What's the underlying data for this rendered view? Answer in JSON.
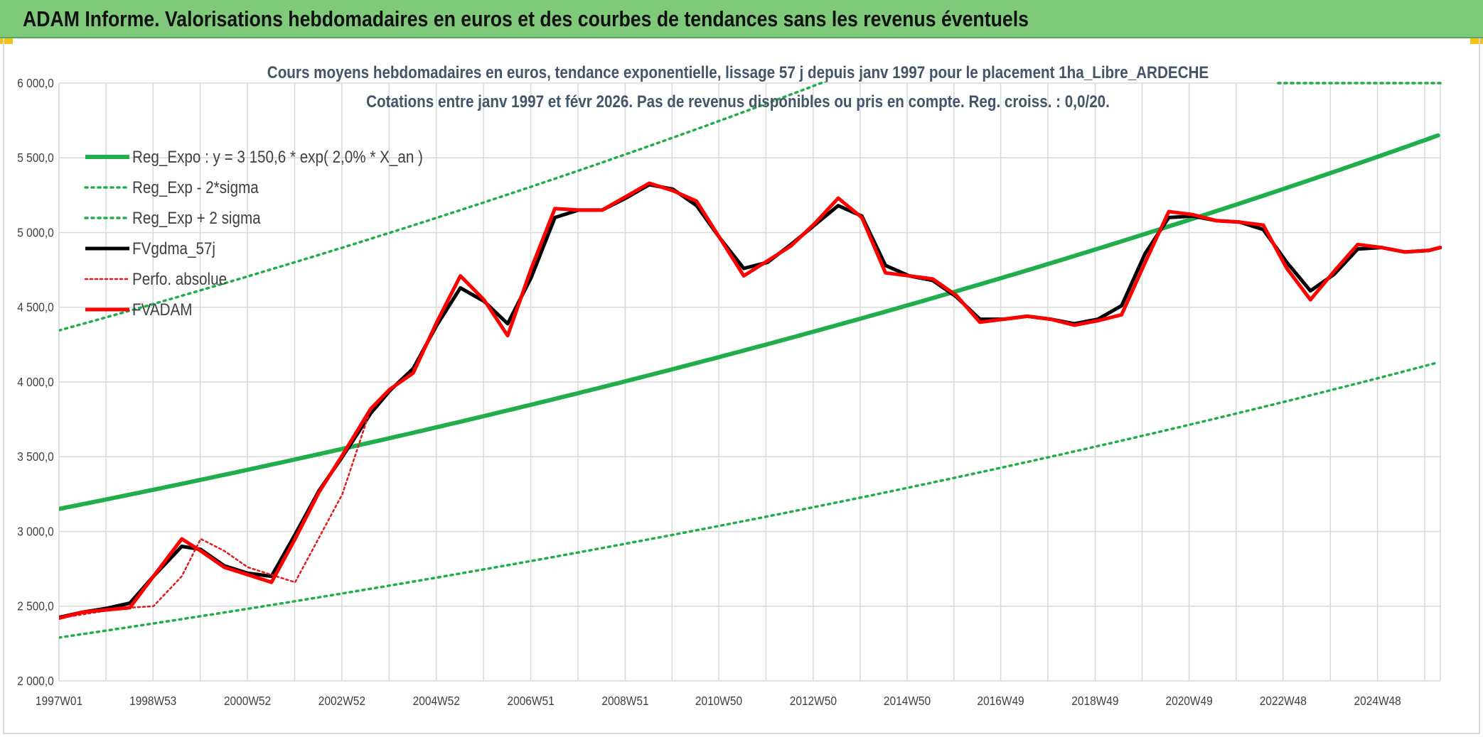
{
  "header": {
    "title": "ADAM Informe. Valorisations hebdomadaires en euros et des courbes de tendances sans les revenus éventuels"
  },
  "colors": {
    "header_bg": "#7fc97a",
    "reg_expo": "#1fae4b",
    "sigma_lines": "#1fae4b",
    "fvgdma": "#000000",
    "perfo": "#e31a1c",
    "fvadam": "#ff0000",
    "grid": "#d9d9d9"
  },
  "chart_data": {
    "type": "line",
    "title": "Cours moyens hebdomadaires en euros, tendance exponentielle, lissage 57 j depuis janv 1997 pour le placement 1ha_Libre_ARDECHE",
    "subtitle": "Cotations entre janv 1997 et févr 2026. Pas de revenus disponibles ou pris en compte. Reg. croiss. : 0,0/20.",
    "xlabel": "",
    "ylabel": "",
    "x_range": [
      1997.0,
      2026.25
    ],
    "ylim": [
      2000,
      6000
    ],
    "yticks": [
      2000,
      2500,
      3000,
      3500,
      4000,
      4500,
      5000,
      5500,
      6000
    ],
    "ytick_labels": [
      "2 000,0",
      "2 500,0",
      "3 000,0",
      "3 500,0",
      "4 000,0",
      "4 500,0",
      "5 000,0",
      "5 500,0",
      "6 000,0"
    ],
    "xticks": [
      1997.0,
      1998.99,
      2000.99,
      2002.99,
      2004.99,
      2006.99,
      2008.99,
      2010.97,
      2012.97,
      2014.96,
      2016.94,
      2018.94,
      2020.93,
      2022.92,
      2024.92
    ],
    "xtick_labels": [
      "1997W01",
      "1998W53",
      "2000W52",
      "2002W52",
      "2004W52",
      "2006W51",
      "2008W51",
      "2010W50",
      "2012W50",
      "2014W50",
      "2016W49",
      "2018W49",
      "2020W49",
      "2022W48",
      "2024W48"
    ],
    "grid": true,
    "legend_position": "top-left",
    "legend": [
      {
        "label": "Reg_Expo : y = 3 150,6 * exp( 2,0% *  X_an )",
        "style": "solid-thick",
        "color": "#1fae4b"
      },
      {
        "label": "Reg_Exp - 2*sigma",
        "style": "dotted",
        "color": "#1fae4b"
      },
      {
        "label": "Reg_Exp + 2 sigma",
        "style": "dotted",
        "color": "#1fae4b"
      },
      {
        "label": "FVgdma_57j",
        "style": "solid",
        "color": "#000000"
      },
      {
        "label": "Perfo. absolue",
        "style": "dotted",
        "color": "#e31a1c"
      },
      {
        "label": "FVADAM",
        "style": "solid-thick",
        "color": "#ff0000"
      }
    ],
    "series": [
      {
        "name": "Reg_Expo : y = 3 150,6 * exp( 2,0% *  X_an )",
        "kind": "exp",
        "a": 3150.6,
        "rate": 0.02,
        "x_start": 1997.0,
        "x_end": 2026.25
      },
      {
        "name": "Reg_Exp - 2*sigma",
        "kind": "exp",
        "a": 2290,
        "rate": 0.0202,
        "x_start": 1997.0,
        "x_end": 2026.25
      },
      {
        "name": "Reg_Exp + 2 sigma",
        "kind": "exp",
        "a": 4345,
        "rate": 0.02,
        "x_start": 1997.0,
        "x_end": 2026.25
      },
      {
        "name": "FVgdma_57j",
        "kind": "points",
        "x": [
          1997.0,
          1997.5,
          1998.0,
          1998.5,
          1999.0,
          1999.6,
          2000.0,
          2000.5,
          2001.0,
          2001.5,
          2002.0,
          2002.5,
          2003.0,
          2003.6,
          2004.0,
          2004.5,
          2005.0,
          2005.5,
          2006.0,
          2006.5,
          2007.0,
          2007.5,
          2008.0,
          2008.5,
          2009.0,
          2009.5,
          2010.0,
          2010.5,
          2011.0,
          2011.5,
          2012.0,
          2012.5,
          2013.0,
          2013.5,
          2014.0,
          2014.5,
          2015.0,
          2015.5,
          2016.0,
          2016.5,
          2017.0,
          2017.5,
          2018.0,
          2018.5,
          2019.0,
          2019.5,
          2020.0,
          2020.5,
          2021.0,
          2021.5,
          2022.0,
          2022.5,
          2023.0,
          2023.5,
          2024.0,
          2024.5,
          2025.0,
          2025.5,
          2026.0,
          2026.25
        ],
        "y": [
          2425,
          2460,
          2485,
          2520,
          2700,
          2900,
          2880,
          2770,
          2720,
          2700,
          2980,
          3270,
          3500,
          3790,
          3940,
          4090,
          4380,
          4630,
          4540,
          4390,
          4700,
          5100,
          5150,
          5150,
          5230,
          5320,
          5290,
          5180,
          4960,
          4760,
          4800,
          4920,
          5050,
          5180,
          5110,
          4780,
          4710,
          4680,
          4570,
          4420,
          4420,
          4440,
          4420,
          4390,
          4420,
          4510,
          4860,
          5100,
          5110,
          5080,
          5070,
          5020,
          4800,
          4610,
          4720,
          4890,
          4900,
          4870,
          4880,
          4900
        ]
      },
      {
        "name": "Perfo. absolue",
        "kind": "points",
        "x": [
          1997.0,
          1998.0,
          1998.5,
          1999.0,
          1999.6,
          2000.0,
          2000.5,
          2001.0,
          2001.5,
          2002.0,
          2003.0,
          2003.6,
          2004.0,
          2004.5,
          2005.0,
          2005.5,
          2006.0,
          2006.5,
          2007.0,
          2007.5,
          2008.0,
          2008.5,
          2009.0,
          2009.5,
          2010.0,
          2010.5,
          2011.0,
          2011.5,
          2012.0,
          2012.5,
          2013.0,
          2013.5,
          2014.0,
          2014.5,
          2015.0,
          2015.5,
          2016.0,
          2016.5,
          2017.0,
          2017.5,
          2018.0,
          2018.5,
          2019.0,
          2019.5,
          2020.0,
          2020.5,
          2021.0,
          2021.5,
          2022.0,
          2022.5,
          2023.0,
          2023.5,
          2024.0,
          2024.5,
          2025.0,
          2025.5,
          2026.0,
          2026.25
        ],
        "y": [
          2420,
          2470,
          2490,
          2500,
          2700,
          2950,
          2870,
          2760,
          2710,
          2660,
          3250,
          3820,
          3950,
          4060,
          4400,
          4710,
          4550,
          4310,
          4760,
          5160,
          5150,
          5150,
          5240,
          5330,
          5280,
          5210,
          4960,
          4710,
          4810,
          4910,
          5060,
          5230,
          5100,
          4730,
          4710,
          4690,
          4580,
          4400,
          4420,
          4440,
          4420,
          4380,
          4410,
          4450,
          4800,
          5140,
          5120,
          5080,
          5070,
          5050,
          4760,
          4550,
          4740,
          4920,
          4900,
          4870,
          4880,
          4900
        ]
      },
      {
        "name": "FVADAM",
        "kind": "points",
        "x": [
          1997.0,
          1997.5,
          1998.0,
          1998.5,
          1999.0,
          1999.6,
          2000.0,
          2000.5,
          2001.0,
          2001.5,
          2002.0,
          2002.5,
          2003.0,
          2003.6,
          2004.0,
          2004.5,
          2005.0,
          2005.5,
          2006.0,
          2006.5,
          2007.0,
          2007.5,
          2008.0,
          2008.5,
          2009.0,
          2009.5,
          2010.0,
          2010.5,
          2011.0,
          2011.5,
          2012.0,
          2012.5,
          2013.0,
          2013.5,
          2014.0,
          2014.5,
          2015.0,
          2015.5,
          2016.0,
          2016.5,
          2017.0,
          2017.5,
          2018.0,
          2018.5,
          2019.0,
          2019.5,
          2020.0,
          2020.5,
          2021.0,
          2021.5,
          2022.0,
          2022.5,
          2023.0,
          2023.5,
          2024.0,
          2024.5,
          2025.0,
          2025.5,
          2026.0,
          2026.25
        ],
        "y": [
          2420,
          2460,
          2475,
          2490,
          2700,
          2950,
          2870,
          2760,
          2710,
          2660,
          2950,
          3260,
          3510,
          3820,
          3950,
          4060,
          4400,
          4710,
          4550,
          4310,
          4760,
          5160,
          5150,
          5150,
          5240,
          5330,
          5280,
          5210,
          4960,
          4710,
          4810,
          4910,
          5060,
          5230,
          5100,
          4730,
          4710,
          4690,
          4580,
          4400,
          4420,
          4440,
          4420,
          4380,
          4410,
          4450,
          4800,
          5140,
          5120,
          5080,
          5070,
          5050,
          4760,
          4550,
          4740,
          4920,
          4900,
          4870,
          4880,
          4900
        ]
      }
    ]
  }
}
